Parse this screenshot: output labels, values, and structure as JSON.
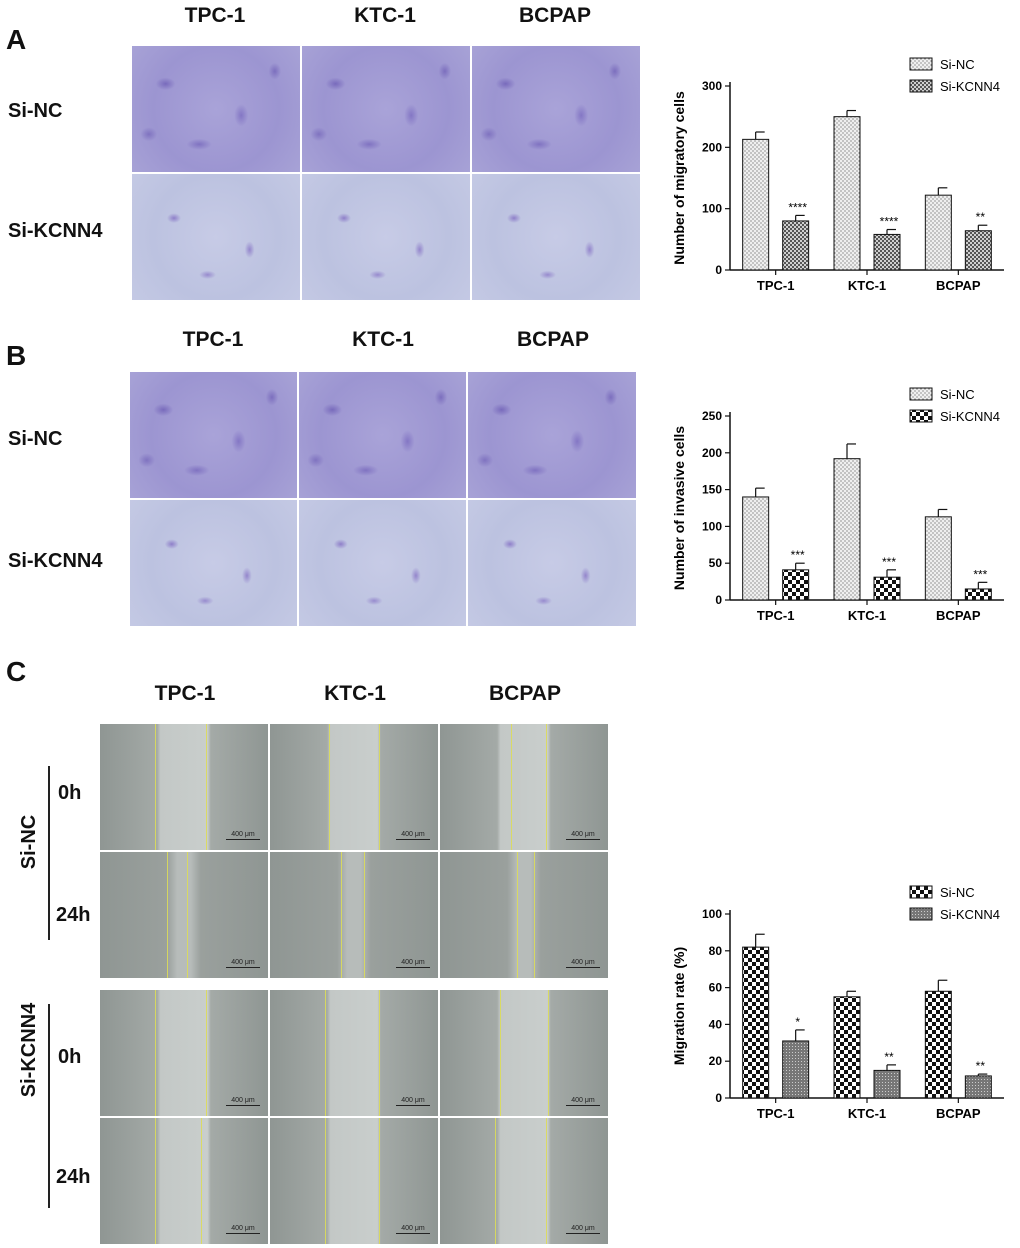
{
  "panels": {
    "A": {
      "letter": "A",
      "col_headers": [
        "TPC-1",
        "KTC-1",
        "BCPAP"
      ],
      "row_headers": [
        "Si-NC",
        "Si-KCNN4"
      ]
    },
    "B": {
      "letter": "B",
      "col_headers": [
        "TPC-1",
        "KTC-1",
        "BCPAP"
      ],
      "row_headers": [
        "Si-NC",
        "Si-KCNN4"
      ]
    },
    "C": {
      "letter": "C",
      "col_headers": [
        "TPC-1",
        "KTC-1",
        "BCPAP"
      ],
      "group_labels": [
        "Si-NC",
        "Si-KCNN4"
      ],
      "time_labels": [
        "0h",
        "24h",
        "0h",
        "24h"
      ],
      "scale_label": "400 μm"
    }
  },
  "chart_data": [
    {
      "type": "bar",
      "ylabel": "Number of migratory cells",
      "categories": [
        "TPC-1",
        "KTC-1",
        "BCPAP"
      ],
      "ylim": [
        0,
        300
      ],
      "yticks": [
        0,
        100,
        200,
        300
      ],
      "series": [
        {
          "name": "Si-NC",
          "values": [
            213,
            250,
            122
          ],
          "errors": [
            12,
            10,
            12
          ],
          "pattern": "dots",
          "sig": [
            "",
            "",
            ""
          ]
        },
        {
          "name": "Si-KCNN4",
          "values": [
            80,
            58,
            64
          ],
          "errors": [
            9,
            8,
            9
          ],
          "pattern": "checker",
          "sig": [
            "****",
            "****",
            "**"
          ]
        }
      ],
      "legend": "top-right"
    },
    {
      "type": "bar",
      "ylabel": "Number of invasive cells",
      "categories": [
        "TPC-1",
        "KTC-1",
        "BCPAP"
      ],
      "ylim": [
        0,
        250
      ],
      "yticks": [
        0,
        50,
        100,
        150,
        200,
        250
      ],
      "series": [
        {
          "name": "Si-NC",
          "values": [
            140,
            192,
            113
          ],
          "errors": [
            12,
            20,
            10
          ],
          "pattern": "dots",
          "sig": [
            "",
            "",
            ""
          ]
        },
        {
          "name": "Si-KCNN4",
          "values": [
            41,
            31,
            15
          ],
          "errors": [
            9,
            10,
            9
          ],
          "pattern": "bigchecker",
          "sig": [
            "***",
            "***",
            "***"
          ]
        }
      ],
      "legend": "top-right"
    },
    {
      "type": "bar",
      "ylabel": "Migration rate (%)",
      "categories": [
        "TPC-1",
        "KTC-1",
        "BCPAP"
      ],
      "ylim": [
        0,
        100
      ],
      "yticks": [
        0,
        20,
        40,
        60,
        80,
        100
      ],
      "series": [
        {
          "name": "Si-NC",
          "values": [
            82,
            55,
            58
          ],
          "errors": [
            7,
            3,
            6
          ],
          "pattern": "bigchecker",
          "sig": [
            "",
            "",
            ""
          ]
        },
        {
          "name": "Si-KCNN4",
          "values": [
            31,
            15,
            12
          ],
          "errors": [
            6,
            3,
            1
          ],
          "pattern": "grid",
          "sig": [
            "*",
            "**",
            "**"
          ]
        }
      ],
      "legend": "top-right"
    }
  ]
}
